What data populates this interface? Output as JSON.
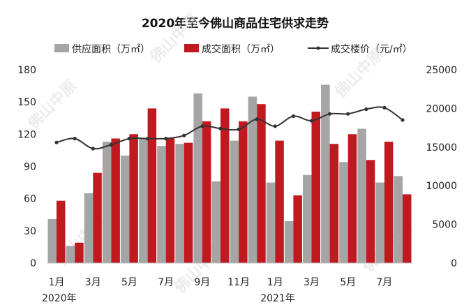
{
  "chart_data": {
    "type": "bar",
    "title": "2020年至今佛山商品住宅供求走势",
    "categories": [
      "2020-01",
      "2020-02",
      "2020-03",
      "2020-04",
      "2020-05",
      "2020-06",
      "2020-07",
      "2020-08",
      "2020-09",
      "2020-10",
      "2020-11",
      "2020-12",
      "2021-01",
      "2021-02",
      "2021-03",
      "2021-04",
      "2021-05",
      "2021-06",
      "2021-07",
      "2021-08"
    ],
    "x_tick_labels": [
      "1月",
      "",
      "3月",
      "",
      "5月",
      "",
      "7月",
      "",
      "9月",
      "",
      "11月",
      "",
      "1月",
      "",
      "3月",
      "",
      "5月",
      "",
      "7月",
      ""
    ],
    "year_labels": [
      {
        "index": 0,
        "text": "2020年"
      },
      {
        "index": 12,
        "text": "2021年"
      }
    ],
    "series": [
      {
        "name": "供应面积（万㎡）",
        "type": "bar",
        "axis": "left",
        "color": "#a5a5a5",
        "values": [
          41,
          16,
          65,
          113,
          100,
          116,
          109,
          111,
          158,
          76,
          114,
          155,
          75,
          39,
          82,
          166,
          94,
          125,
          75,
          81
        ]
      },
      {
        "name": "成交面积（万㎡）",
        "type": "bar",
        "axis": "left",
        "color": "#c0191f",
        "values": [
          58,
          19,
          84,
          116,
          120,
          144,
          116,
          112,
          132,
          144,
          132,
          148,
          114,
          63,
          141,
          111,
          120,
          96,
          113,
          64
        ]
      },
      {
        "name": "成交楼价（元/㎡）",
        "type": "line",
        "axis": "right",
        "color": "#333333",
        "values": [
          15600,
          16100,
          14800,
          15300,
          16100,
          16100,
          16100,
          16500,
          17700,
          17400,
          17300,
          18600,
          17700,
          19000,
          18400,
          19300,
          19300,
          19900,
          20100,
          18500
        ]
      }
    ],
    "y_left": {
      "ylim": [
        0,
        180
      ],
      "ticks": [
        0,
        30,
        60,
        90,
        120,
        150,
        180
      ]
    },
    "y_right": {
      "ylim": [
        0,
        25000
      ],
      "ticks": [
        0,
        5000,
        10000,
        15000,
        20000,
        25000
      ]
    },
    "legend_position": "top",
    "grid": false
  },
  "watermark": "佛山中原"
}
